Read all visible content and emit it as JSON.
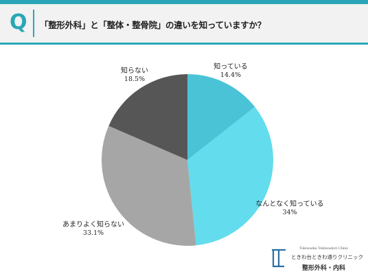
{
  "header": {
    "q_mark": "Q",
    "question": "「整形外科」と「整体・整骨院」の違いを知っていますか？"
  },
  "chart_data": {
    "type": "pie",
    "title": "",
    "start_angle": "12 o'clock, clockwise",
    "slices": [
      {
        "label": "知っている",
        "value": 14.4,
        "value_text": "14.4%",
        "color": "#4bc3d7"
      },
      {
        "label": "なんとなく知っている",
        "value": 34,
        "value_text": "34%",
        "color": "#63dcee"
      },
      {
        "label": "あまりよく知らない",
        "value": 33.1,
        "value_text": "33.1%",
        "color": "#a6a6a6"
      },
      {
        "label": "知らない",
        "value": 18.5,
        "value_text": "18.5%",
        "color": "#565656"
      }
    ]
  },
  "logo": {
    "name_en": "Tokiwadai Tokiwadori Clinic",
    "name_jp": "ときわ台ときわ通りクリニック",
    "dept": "整形外科・内科",
    "color": "#2a6fa3"
  },
  "colors": {
    "accent": "#2aa6b8",
    "header_bg": "#f2f2f2"
  }
}
